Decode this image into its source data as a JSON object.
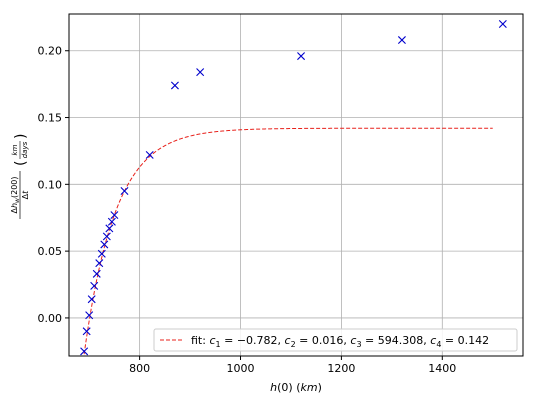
{
  "chart_data": {
    "type": "scatter",
    "title": "",
    "xlabel": "h(0) (km)",
    "ylabel": "Δh_w(200) / Δt (km / days)",
    "xlim": [
      660,
      1560
    ],
    "ylim": [
      -0.0285,
      0.2275
    ],
    "x_ticks": [
      800,
      1000,
      1200,
      1400
    ],
    "y_ticks": [
      0.0,
      0.05,
      0.1,
      0.15,
      0.2
    ],
    "x_tick_labels": [
      "800",
      "1000",
      "1200",
      "1400"
    ],
    "y_tick_labels": [
      "0.00",
      "0.05",
      "0.10",
      "0.15",
      "0.20"
    ],
    "grid": true,
    "legend_position": "lower-right",
    "series": [
      {
        "kind": "scatter",
        "marker": "x",
        "color": "#0000cc",
        "x": [
          690,
          695,
          700,
          705,
          710,
          715,
          720,
          725,
          730,
          735,
          740,
          745,
          750,
          770,
          820,
          870,
          920,
          1120,
          1320,
          1520
        ],
        "y": [
          -0.025,
          -0.01,
          0.002,
          0.014,
          0.024,
          0.033,
          0.041,
          0.048,
          0.055,
          0.061,
          0.067,
          0.072,
          0.077,
          0.095,
          0.122,
          0.174,
          0.184,
          0.196,
          0.208,
          0.22
        ]
      },
      {
        "kind": "line",
        "name": "fit: c_1 = -0.782, c_2 = 0.016, c_3 = 594.308, c_4 = 0.142",
        "style": "dashed",
        "color": "#e8211b",
        "formula": "c4 + c1*exp(-c2*(x - c3))",
        "params": {
          "c1": -0.782,
          "c2": 0.016,
          "c3": 594.308,
          "c4": 0.142
        },
        "x_range": [
          690,
          1500
        ]
      }
    ],
    "legend": {
      "fit_prefix": "fit: ",
      "c1_label": "c",
      "c1_sub": "1",
      "c1_val": " = −0.782, ",
      "c2_label": "c",
      "c2_sub": "2",
      "c2_val": " = 0.016, ",
      "c3_label": "c",
      "c3_sub": "3",
      "c3_val": " = 594.308, ",
      "c4_label": "c",
      "c4_sub": "4",
      "c4_val": " = 0.142"
    }
  },
  "colors": {
    "marker": "#0000cc",
    "fit_line": "#e8211b",
    "grid": "#b0b0b0",
    "axes": "#000000"
  }
}
